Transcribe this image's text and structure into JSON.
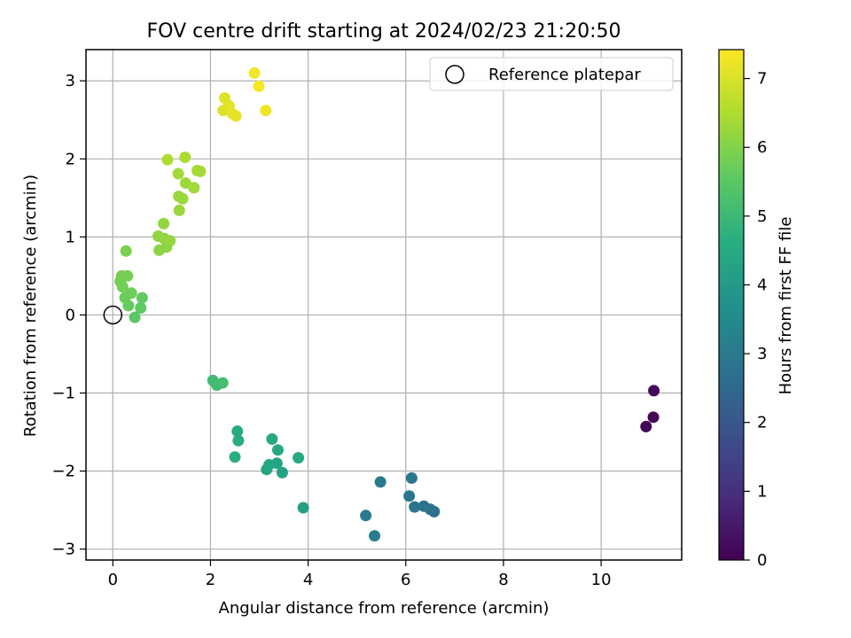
{
  "chart_data": {
    "type": "scatter",
    "title": "FOV centre drift starting at 2024/02/23 21:20:50",
    "xlabel": "Angular distance from reference (arcmin)",
    "ylabel": "Rotation from reference (arcmin)",
    "xlim": [
      -0.55,
      11.65
    ],
    "ylim": [
      -3.14,
      3.4
    ],
    "xticks": [
      0,
      2,
      4,
      6,
      8,
      10
    ],
    "yticks": [
      -3,
      -2,
      -1,
      0,
      1,
      2,
      3
    ],
    "grid": true,
    "legend": {
      "position": "top-right",
      "label": "Reference platepar"
    },
    "reference_point": {
      "x": 0,
      "y": 0
    },
    "colorbar": {
      "label": "Hours from first FF file",
      "range": [
        0,
        7.42
      ],
      "ticks": [
        0,
        1,
        2,
        3,
        4,
        5,
        6,
        7
      ],
      "colormap": "viridis"
    },
    "series": [
      {
        "points": [
          {
            "x": 10.92,
            "y": -1.43,
            "c": 0.05
          },
          {
            "x": 11.07,
            "y": -1.31,
            "c": 0.1
          },
          {
            "x": 11.08,
            "y": -0.97,
            "c": 0.15
          },
          {
            "x": 6.58,
            "y": -2.52,
            "c": 2.7
          },
          {
            "x": 6.5,
            "y": -2.49,
            "c": 2.75
          },
          {
            "x": 6.37,
            "y": -2.45,
            "c": 2.8
          },
          {
            "x": 6.18,
            "y": -2.46,
            "c": 2.85
          },
          {
            "x": 6.07,
            "y": -2.32,
            "c": 2.9
          },
          {
            "x": 6.12,
            "y": -2.09,
            "c": 2.95
          },
          {
            "x": 5.48,
            "y": -2.14,
            "c": 3.0
          },
          {
            "x": 5.18,
            "y": -2.57,
            "c": 3.05
          },
          {
            "x": 5.36,
            "y": -2.83,
            "c": 3.1
          },
          {
            "x": 3.9,
            "y": -2.47,
            "c": 4.2
          },
          {
            "x": 3.47,
            "y": -2.02,
            "c": 4.25
          },
          {
            "x": 3.36,
            "y": -1.9,
            "c": 4.3
          },
          {
            "x": 3.15,
            "y": -1.98,
            "c": 4.35
          },
          {
            "x": 3.2,
            "y": -1.92,
            "c": 4.4
          },
          {
            "x": 3.38,
            "y": -1.73,
            "c": 4.45
          },
          {
            "x": 3.26,
            "y": -1.59,
            "c": 4.45
          },
          {
            "x": 3.8,
            "y": -1.83,
            "c": 4.5
          },
          {
            "x": 2.55,
            "y": -1.49,
            "c": 4.55
          },
          {
            "x": 2.57,
            "y": -1.61,
            "c": 4.6
          },
          {
            "x": 2.5,
            "y": -1.82,
            "c": 4.65
          },
          {
            "x": 2.05,
            "y": -0.84,
            "c": 5.05
          },
          {
            "x": 2.13,
            "y": -0.9,
            "c": 5.1
          },
          {
            "x": 2.25,
            "y": -0.87,
            "c": 5.15
          },
          {
            "x": 0.45,
            "y": -0.03,
            "c": 5.5
          },
          {
            "x": 0.57,
            "y": 0.09,
            "c": 5.55
          },
          {
            "x": 0.6,
            "y": 0.22,
            "c": 5.6
          },
          {
            "x": 0.32,
            "y": 0.12,
            "c": 5.65
          },
          {
            "x": 0.25,
            "y": 0.22,
            "c": 5.7
          },
          {
            "x": 0.38,
            "y": 0.28,
            "c": 5.75
          },
          {
            "x": 0.2,
            "y": 0.36,
            "c": 5.8
          },
          {
            "x": 0.15,
            "y": 0.43,
            "c": 5.8
          },
          {
            "x": 0.18,
            "y": 0.5,
            "c": 5.85
          },
          {
            "x": 0.3,
            "y": 0.5,
            "c": 5.85
          },
          {
            "x": 0.27,
            "y": 0.82,
            "c": 5.9
          },
          {
            "x": 0.95,
            "y": 0.83,
            "c": 6.1
          },
          {
            "x": 1.1,
            "y": 0.87,
            "c": 6.1
          },
          {
            "x": 0.93,
            "y": 1.01,
            "c": 6.15
          },
          {
            "x": 1.05,
            "y": 0.98,
            "c": 6.15
          },
          {
            "x": 1.17,
            "y": 0.95,
            "c": 6.2
          },
          {
            "x": 1.04,
            "y": 1.17,
            "c": 6.2
          },
          {
            "x": 1.36,
            "y": 1.34,
            "c": 6.25
          },
          {
            "x": 1.35,
            "y": 1.52,
            "c": 6.25
          },
          {
            "x": 1.43,
            "y": 1.49,
            "c": 6.3
          },
          {
            "x": 1.49,
            "y": 1.69,
            "c": 6.3
          },
          {
            "x": 1.66,
            "y": 1.63,
            "c": 6.35
          },
          {
            "x": 1.34,
            "y": 1.81,
            "c": 6.35
          },
          {
            "x": 1.73,
            "y": 1.85,
            "c": 6.4
          },
          {
            "x": 1.79,
            "y": 1.84,
            "c": 6.4
          },
          {
            "x": 1.48,
            "y": 2.02,
            "c": 6.45
          },
          {
            "x": 1.12,
            "y": 1.99,
            "c": 6.5
          },
          {
            "x": 2.26,
            "y": 2.62,
            "c": 7.0
          },
          {
            "x": 2.29,
            "y": 2.78,
            "c": 7.05
          },
          {
            "x": 2.38,
            "y": 2.68,
            "c": 7.1
          },
          {
            "x": 2.45,
            "y": 2.58,
            "c": 7.15
          },
          {
            "x": 2.52,
            "y": 2.55,
            "c": 7.15
          },
          {
            "x": 3.13,
            "y": 2.62,
            "c": 7.25
          },
          {
            "x": 2.9,
            "y": 3.1,
            "c": 7.3
          },
          {
            "x": 2.99,
            "y": 2.93,
            "c": 7.35
          }
        ]
      }
    ]
  }
}
